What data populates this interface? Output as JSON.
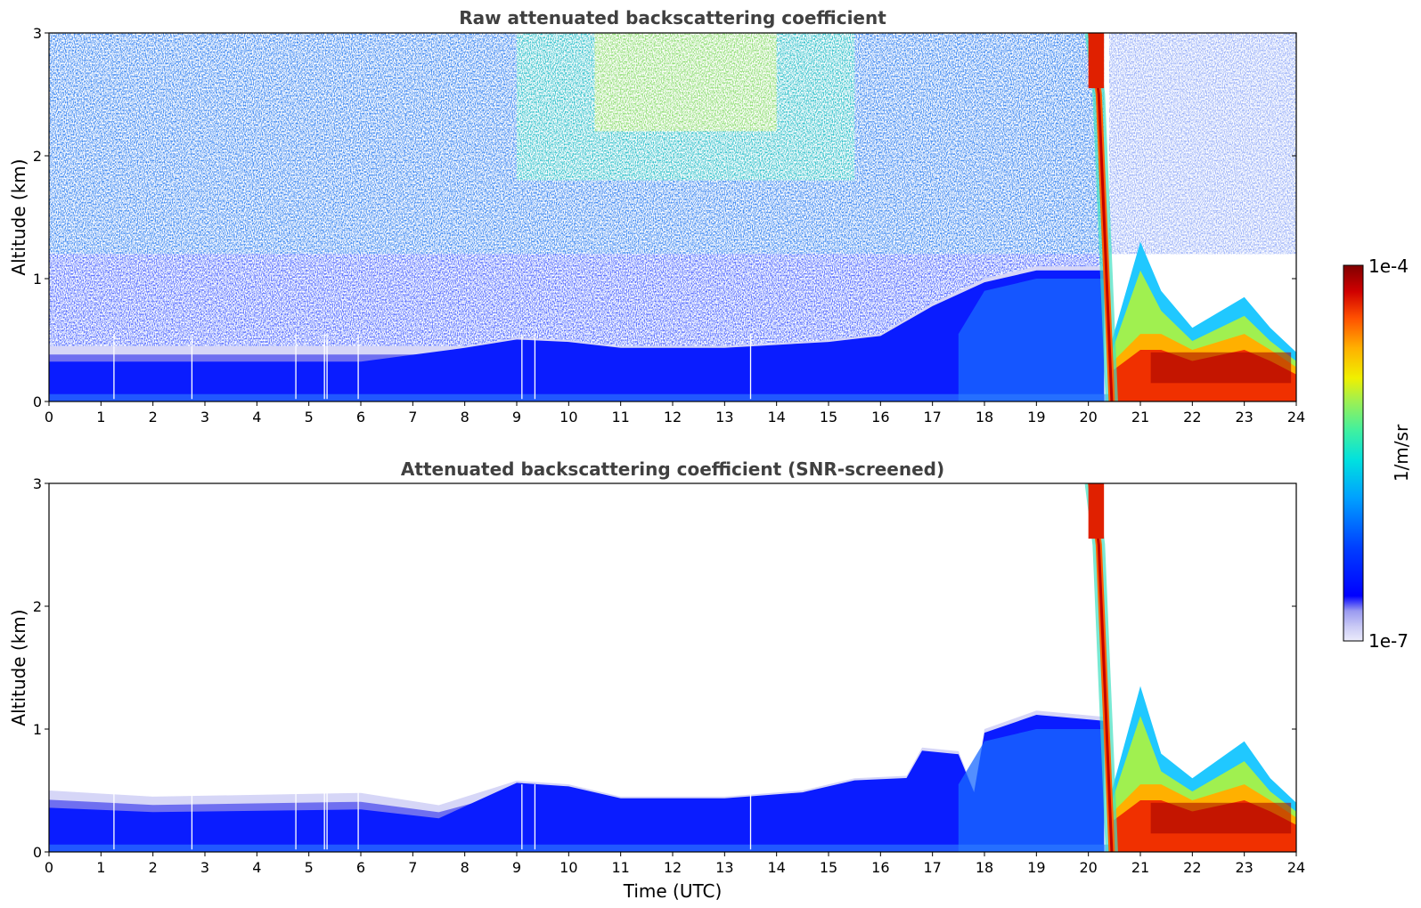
{
  "chart_data": [
    {
      "type": "heatmap",
      "title": "Raw attenuated backscattering coefficient",
      "xlabel": "",
      "ylabel": "Altitude (km)",
      "xlim": [
        0,
        24
      ],
      "ylim": [
        0,
        3
      ],
      "x_ticks": [
        "0",
        "1",
        "2",
        "3",
        "4",
        "5",
        "6",
        "7",
        "8",
        "9",
        "10",
        "11",
        "12",
        "13",
        "14",
        "15",
        "16",
        "17",
        "18",
        "19",
        "20",
        "21",
        "22",
        "23",
        "24"
      ],
      "y_ticks": [
        "0",
        "1",
        "2",
        "3"
      ],
      "screened": false,
      "data_gaps_utc": [
        1.25,
        2.75,
        4.75,
        5.3,
        5.35,
        5.95,
        9.1,
        9.35,
        13.5
      ],
      "boundary_layer_top_km": [
        {
          "x": 0,
          "y": 0.45
        },
        {
          "x": 3,
          "y": 0.45
        },
        {
          "x": 6,
          "y": 0.45
        },
        {
          "x": 8,
          "y": 0.45
        },
        {
          "x": 9,
          "y": 0.52
        },
        {
          "x": 10,
          "y": 0.5
        },
        {
          "x": 11,
          "y": 0.45
        },
        {
          "x": 13,
          "y": 0.45
        },
        {
          "x": 15,
          "y": 0.5
        },
        {
          "x": 16,
          "y": 0.55
        },
        {
          "x": 17,
          "y": 0.8
        },
        {
          "x": 18,
          "y": 1.0
        },
        {
          "x": 19,
          "y": 1.1
        },
        {
          "x": 20.3,
          "y": 1.1
        }
      ],
      "cloud_layer_km": [
        {
          "x": 20.4,
          "y": 0.42
        },
        {
          "x": 21,
          "y": 1.3
        },
        {
          "x": 21.4,
          "y": 0.9
        },
        {
          "x": 22,
          "y": 0.6
        },
        {
          "x": 23,
          "y": 0.85
        },
        {
          "x": 23.5,
          "y": 0.6
        },
        {
          "x": 24,
          "y": 0.4
        }
      ],
      "falling_streak_utc": [
        {
          "x": 20.05,
          "y": 3.0
        },
        {
          "x": 20.2,
          "y": 2.5
        },
        {
          "x": 20.3,
          "y": 1.5
        },
        {
          "x": 20.45,
          "y": 0.0
        }
      ]
    },
    {
      "type": "heatmap",
      "title": "Attenuated backscattering coefficient (SNR-screened)",
      "xlabel": "Time (UTC)",
      "ylabel": "Altitude (km)",
      "xlim": [
        0,
        24
      ],
      "ylim": [
        0,
        3
      ],
      "x_ticks": [
        "0",
        "1",
        "2",
        "3",
        "4",
        "5",
        "6",
        "7",
        "8",
        "9",
        "10",
        "11",
        "12",
        "13",
        "14",
        "15",
        "16",
        "17",
        "18",
        "19",
        "20",
        "21",
        "22",
        "23",
        "24"
      ],
      "y_ticks": [
        "0",
        "1",
        "2",
        "3"
      ],
      "screened": true,
      "data_gaps_utc": [
        1.25,
        2.75,
        4.75,
        5.3,
        5.35,
        5.95,
        9.1,
        9.35,
        13.5
      ],
      "boundary_layer_top_km": [
        {
          "x": 0,
          "y": 0.5
        },
        {
          "x": 2,
          "y": 0.45
        },
        {
          "x": 6,
          "y": 0.48
        },
        {
          "x": 7.5,
          "y": 0.38
        },
        {
          "x": 9,
          "y": 0.58
        },
        {
          "x": 10,
          "y": 0.55
        },
        {
          "x": 11,
          "y": 0.45
        },
        {
          "x": 13,
          "y": 0.45
        },
        {
          "x": 14.5,
          "y": 0.5
        },
        {
          "x": 15.5,
          "y": 0.6
        },
        {
          "x": 16.5,
          "y": 0.62
        },
        {
          "x": 16.8,
          "y": 0.85
        },
        {
          "x": 17.5,
          "y": 0.82
        },
        {
          "x": 17.8,
          "y": 0.5
        },
        {
          "x": 18,
          "y": 1.0
        },
        {
          "x": 19,
          "y": 1.15
        },
        {
          "x": 20.3,
          "y": 1.1
        }
      ],
      "cloud_layer_km": [
        {
          "x": 20.4,
          "y": 0.42
        },
        {
          "x": 21,
          "y": 1.35
        },
        {
          "x": 21.4,
          "y": 0.8
        },
        {
          "x": 22,
          "y": 0.6
        },
        {
          "x": 23,
          "y": 0.9
        },
        {
          "x": 23.5,
          "y": 0.6
        },
        {
          "x": 24,
          "y": 0.4
        }
      ],
      "falling_streak_utc": [
        {
          "x": 20.05,
          "y": 3.0
        },
        {
          "x": 20.2,
          "y": 2.5
        },
        {
          "x": 20.3,
          "y": 1.5
        },
        {
          "x": 20.45,
          "y": 0.0
        }
      ]
    }
  ],
  "colorbar": {
    "label": "1/m/sr",
    "max_label": "1e-4",
    "min_label": "1e-7",
    "scale": "log",
    "min": 1e-07,
    "max": 0.0001,
    "colormap": [
      "#ececfb",
      "#c8c8f5",
      "#9a9af0",
      "#0000ff",
      "#0030ff",
      "#0070ff",
      "#00b0ff",
      "#00e0e0",
      "#40f0a0",
      "#a0f050",
      "#f0f000",
      "#ffc000",
      "#ff7000",
      "#f02000",
      "#c00000",
      "#800000"
    ]
  }
}
